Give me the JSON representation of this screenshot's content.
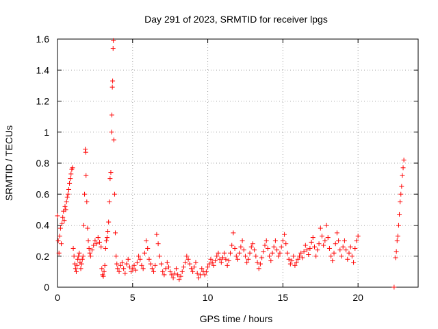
{
  "chart_data": {
    "type": "scatter",
    "title": "Day 291 of 2023, SRMTID for receiver lpgs",
    "xlabel": "GPS time / hours",
    "ylabel": "SRMTID / TECUs",
    "xlim": [
      0,
      24
    ],
    "ylim": [
      0,
      1.6
    ],
    "xticks": [
      "0",
      "5",
      "10",
      "15",
      "20"
    ],
    "yticks": [
      "0",
      "0.2",
      "0.4",
      "0.6",
      "0.8",
      "1",
      "1.2",
      "1.4",
      "1.6"
    ],
    "grid": true,
    "marker": "plus",
    "color": "#ff0000",
    "series": [
      {
        "name": "SRMTID",
        "points": [
          [
            0.0,
            0.46
          ],
          [
            0.05,
            0.3
          ],
          [
            0.1,
            0.22
          ],
          [
            0.15,
            0.33
          ],
          [
            0.2,
            0.38
          ],
          [
            0.25,
            0.28
          ],
          [
            0.3,
            0.41
          ],
          [
            0.35,
            0.45
          ],
          [
            0.4,
            0.49
          ],
          [
            0.45,
            0.43
          ],
          [
            0.5,
            0.52
          ],
          [
            0.55,
            0.5
          ],
          [
            0.6,
            0.55
          ],
          [
            0.65,
            0.58
          ],
          [
            0.7,
            0.6
          ],
          [
            0.75,
            0.63
          ],
          [
            0.8,
            0.67
          ],
          [
            0.85,
            0.7
          ],
          [
            0.9,
            0.73
          ],
          [
            0.95,
            0.76
          ],
          [
            1.0,
            0.77
          ],
          [
            1.05,
            0.25
          ],
          [
            1.1,
            0.2
          ],
          [
            1.15,
            0.15
          ],
          [
            1.2,
            0.12
          ],
          [
            1.25,
            0.1
          ],
          [
            1.3,
            0.14
          ],
          [
            1.35,
            0.18
          ],
          [
            1.4,
            0.2
          ],
          [
            1.45,
            0.22
          ],
          [
            1.5,
            0.16
          ],
          [
            1.55,
            0.12
          ],
          [
            1.6,
            0.15
          ],
          [
            1.65,
            0.18
          ],
          [
            1.7,
            0.2
          ],
          [
            1.75,
            0.4
          ],
          [
            1.8,
            0.6
          ],
          [
            1.85,
            0.89
          ],
          [
            1.88,
            0.87
          ],
          [
            1.9,
            0.72
          ],
          [
            1.95,
            0.55
          ],
          [
            2.0,
            0.38
          ],
          [
            2.05,
            0.3
          ],
          [
            2.1,
            0.25
          ],
          [
            2.15,
            0.22
          ],
          [
            2.2,
            0.2
          ],
          [
            2.3,
            0.24
          ],
          [
            2.4,
            0.27
          ],
          [
            2.5,
            0.3
          ],
          [
            2.6,
            0.28
          ],
          [
            2.7,
            0.32
          ],
          [
            2.8,
            0.29
          ],
          [
            2.9,
            0.26
          ],
          [
            2.95,
            0.12
          ],
          [
            3.0,
            0.08
          ],
          [
            3.05,
            0.07
          ],
          [
            3.1,
            0.1
          ],
          [
            3.15,
            0.14
          ],
          [
            3.2,
            0.25
          ],
          [
            3.25,
            0.3
          ],
          [
            3.3,
            0.32
          ],
          [
            3.35,
            0.36
          ],
          [
            3.4,
            0.42
          ],
          [
            3.45,
            0.55
          ],
          [
            3.5,
            0.7
          ],
          [
            3.55,
            0.74
          ],
          [
            3.6,
            1.0
          ],
          [
            3.62,
            1.11
          ],
          [
            3.65,
            1.29
          ],
          [
            3.67,
            1.33
          ],
          [
            3.7,
            1.54
          ],
          [
            3.72,
            1.59
          ],
          [
            3.75,
            0.95
          ],
          [
            3.8,
            0.6
          ],
          [
            3.85,
            0.35
          ],
          [
            3.9,
            0.2
          ],
          [
            3.95,
            0.15
          ],
          [
            4.0,
            0.12
          ],
          [
            4.1,
            0.1
          ],
          [
            4.2,
            0.14
          ],
          [
            4.3,
            0.16
          ],
          [
            4.4,
            0.12
          ],
          [
            4.5,
            0.09
          ],
          [
            4.6,
            0.15
          ],
          [
            4.7,
            0.18
          ],
          [
            4.8,
            0.13
          ],
          [
            4.9,
            0.1
          ],
          [
            5.0,
            0.12
          ],
          [
            5.1,
            0.14
          ],
          [
            5.2,
            0.11
          ],
          [
            5.3,
            0.16
          ],
          [
            5.4,
            0.2
          ],
          [
            5.5,
            0.18
          ],
          [
            5.6,
            0.14
          ],
          [
            5.7,
            0.12
          ],
          [
            5.8,
            0.22
          ],
          [
            5.9,
            0.3
          ],
          [
            6.0,
            0.25
          ],
          [
            6.1,
            0.18
          ],
          [
            6.2,
            0.15
          ],
          [
            6.3,
            0.12
          ],
          [
            6.4,
            0.1
          ],
          [
            6.5,
            0.14
          ],
          [
            6.6,
            0.34
          ],
          [
            6.7,
            0.28
          ],
          [
            6.8,
            0.2
          ],
          [
            6.9,
            0.15
          ],
          [
            7.0,
            0.1
          ],
          [
            7.1,
            0.08
          ],
          [
            7.2,
            0.12
          ],
          [
            7.3,
            0.16
          ],
          [
            7.4,
            0.13
          ],
          [
            7.5,
            0.1
          ],
          [
            7.6,
            0.08
          ],
          [
            7.7,
            0.06
          ],
          [
            7.8,
            0.09
          ],
          [
            7.9,
            0.12
          ],
          [
            8.0,
            0.08
          ],
          [
            8.1,
            0.05
          ],
          [
            8.2,
            0.07
          ],
          [
            8.3,
            0.1
          ],
          [
            8.4,
            0.13
          ],
          [
            8.5,
            0.16
          ],
          [
            8.6,
            0.2
          ],
          [
            8.7,
            0.18
          ],
          [
            8.8,
            0.15
          ],
          [
            8.9,
            0.12
          ],
          [
            9.0,
            0.1
          ],
          [
            9.1,
            0.13
          ],
          [
            9.2,
            0.16
          ],
          [
            9.3,
            0.09
          ],
          [
            9.4,
            0.06
          ],
          [
            9.5,
            0.08
          ],
          [
            9.6,
            0.12
          ],
          [
            9.7,
            0.1
          ],
          [
            9.8,
            0.08
          ],
          [
            9.9,
            0.1
          ],
          [
            10.0,
            0.13
          ],
          [
            10.1,
            0.15
          ],
          [
            10.2,
            0.18
          ],
          [
            10.3,
            0.16
          ],
          [
            10.4,
            0.14
          ],
          [
            10.5,
            0.17
          ],
          [
            10.6,
            0.2
          ],
          [
            10.7,
            0.22
          ],
          [
            10.8,
            0.18
          ],
          [
            10.9,
            0.16
          ],
          [
            11.0,
            0.19
          ],
          [
            11.1,
            0.22
          ],
          [
            11.2,
            0.18
          ],
          [
            11.3,
            0.14
          ],
          [
            11.4,
            0.17
          ],
          [
            11.5,
            0.22
          ],
          [
            11.6,
            0.27
          ],
          [
            11.7,
            0.35
          ],
          [
            11.8,
            0.25
          ],
          [
            11.9,
            0.2
          ],
          [
            12.0,
            0.18
          ],
          [
            12.1,
            0.22
          ],
          [
            12.2,
            0.26
          ],
          [
            12.3,
            0.3
          ],
          [
            12.4,
            0.24
          ],
          [
            12.5,
            0.2
          ],
          [
            12.6,
            0.16
          ],
          [
            12.7,
            0.18
          ],
          [
            12.8,
            0.22
          ],
          [
            12.9,
            0.26
          ],
          [
            13.0,
            0.28
          ],
          [
            13.1,
            0.24
          ],
          [
            13.2,
            0.2
          ],
          [
            13.3,
            0.16
          ],
          [
            13.4,
            0.12
          ],
          [
            13.5,
            0.15
          ],
          [
            13.6,
            0.19
          ],
          [
            13.7,
            0.23
          ],
          [
            13.8,
            0.27
          ],
          [
            13.9,
            0.3
          ],
          [
            14.0,
            0.25
          ],
          [
            14.1,
            0.2
          ],
          [
            14.2,
            0.17
          ],
          [
            14.3,
            0.22
          ],
          [
            14.4,
            0.26
          ],
          [
            14.5,
            0.3
          ],
          [
            14.6,
            0.24
          ],
          [
            14.7,
            0.2
          ],
          [
            14.8,
            0.22
          ],
          [
            14.9,
            0.26
          ],
          [
            15.0,
            0.3
          ],
          [
            15.1,
            0.34
          ],
          [
            15.2,
            0.28
          ],
          [
            15.3,
            0.22
          ],
          [
            15.4,
            0.18
          ],
          [
            15.5,
            0.15
          ],
          [
            15.6,
            0.17
          ],
          [
            15.7,
            0.2
          ],
          [
            15.8,
            0.14
          ],
          [
            15.9,
            0.16
          ],
          [
            16.0,
            0.18
          ],
          [
            16.1,
            0.2
          ],
          [
            16.2,
            0.22
          ],
          [
            16.3,
            0.19
          ],
          [
            16.4,
            0.23
          ],
          [
            16.5,
            0.27
          ],
          [
            16.6,
            0.24
          ],
          [
            16.7,
            0.21
          ],
          [
            16.8,
            0.25
          ],
          [
            16.9,
            0.29
          ],
          [
            17.0,
            0.32
          ],
          [
            17.1,
            0.26
          ],
          [
            17.2,
            0.2
          ],
          [
            17.3,
            0.24
          ],
          [
            17.4,
            0.28
          ],
          [
            17.5,
            0.38
          ],
          [
            17.6,
            0.33
          ],
          [
            17.7,
            0.27
          ],
          [
            17.8,
            0.3
          ],
          [
            17.9,
            0.4
          ],
          [
            18.0,
            0.32
          ],
          [
            18.1,
            0.25
          ],
          [
            18.2,
            0.2
          ],
          [
            18.3,
            0.17
          ],
          [
            18.4,
            0.22
          ],
          [
            18.5,
            0.28
          ],
          [
            18.6,
            0.35
          ],
          [
            18.7,
            0.3
          ],
          [
            18.8,
            0.24
          ],
          [
            18.9,
            0.2
          ],
          [
            19.0,
            0.26
          ],
          [
            19.1,
            0.3
          ],
          [
            19.2,
            0.24
          ],
          [
            19.3,
            0.18
          ],
          [
            19.4,
            0.22
          ],
          [
            19.5,
            0.26
          ],
          [
            19.6,
            0.2
          ],
          [
            19.7,
            0.16
          ],
          [
            19.8,
            0.25
          ],
          [
            19.9,
            0.3
          ],
          [
            20.0,
            0.33
          ],
          [
            22.4,
            0.0
          ],
          [
            22.5,
            0.19
          ],
          [
            22.55,
            0.23
          ],
          [
            22.6,
            0.3
          ],
          [
            22.65,
            0.33
          ],
          [
            22.7,
            0.4
          ],
          [
            22.75,
            0.47
          ],
          [
            22.8,
            0.55
          ],
          [
            22.85,
            0.6
          ],
          [
            22.9,
            0.65
          ],
          [
            22.95,
            0.72
          ],
          [
            23.0,
            0.77
          ],
          [
            23.05,
            0.82
          ]
        ]
      }
    ]
  }
}
